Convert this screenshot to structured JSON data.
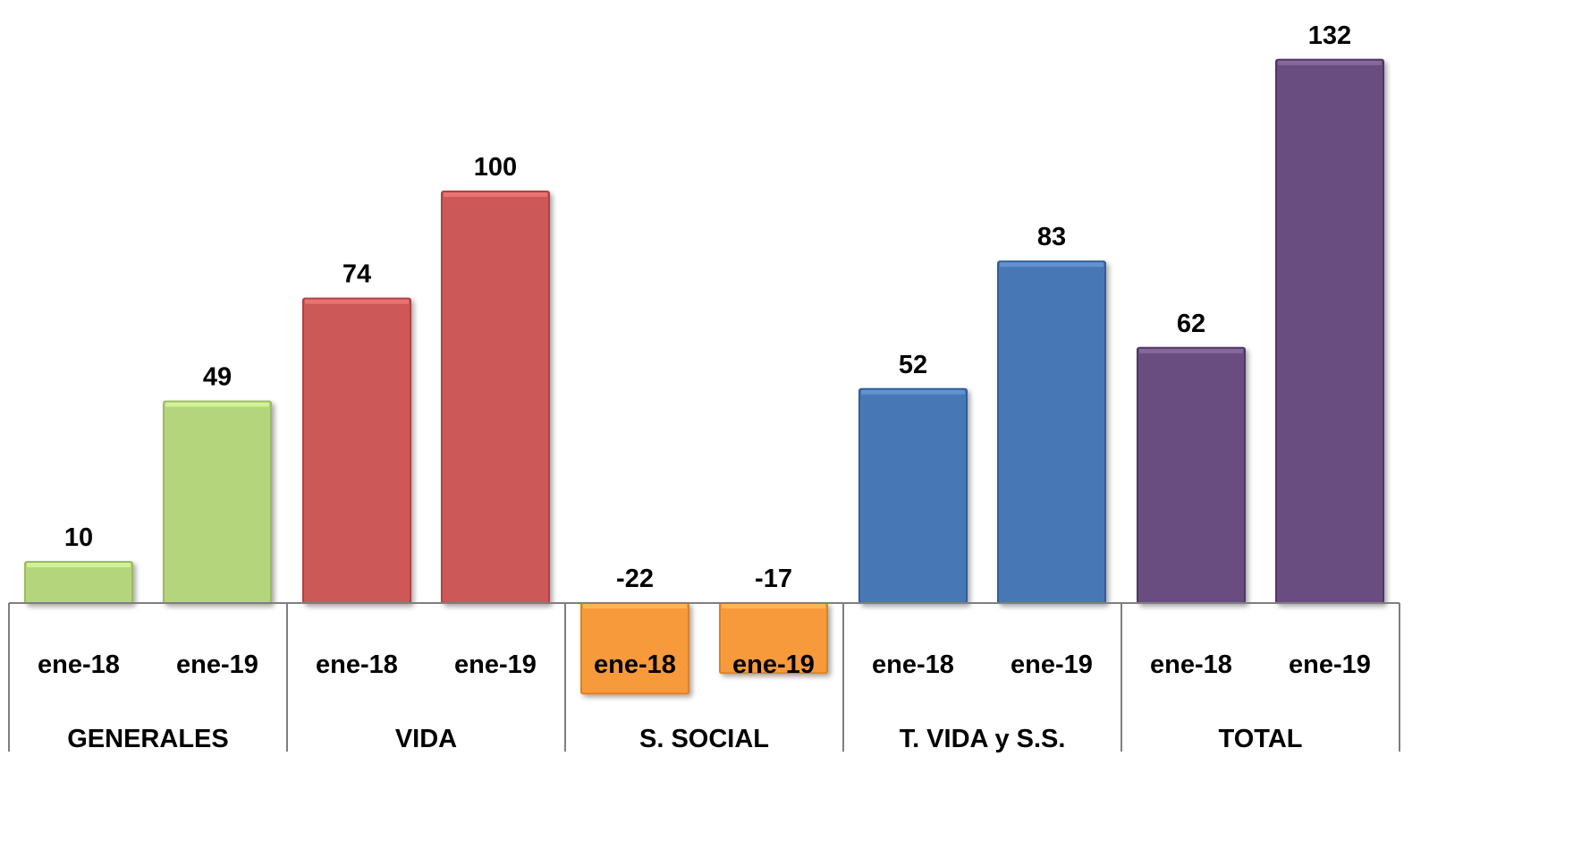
{
  "chart_data": {
    "type": "bar",
    "group_labels": [
      "GENERALES",
      "VIDA",
      "S. SOCIAL",
      "T. VIDA y S.S.",
      "TOTAL"
    ],
    "sub_labels": [
      "ene-18",
      "ene-19"
    ],
    "values": [
      [
        10,
        49
      ],
      [
        74,
        100
      ],
      [
        -22,
        -17
      ],
      [
        52,
        83
      ],
      [
        62,
        132
      ]
    ],
    "colors": [
      "#b5d57b",
      "#cd5858",
      "#f79a3b",
      "#4677b4",
      "#6a4e80"
    ],
    "title": "",
    "xlabel": "",
    "ylabel": "",
    "data_labels": true,
    "grid": false,
    "legend": "none"
  }
}
